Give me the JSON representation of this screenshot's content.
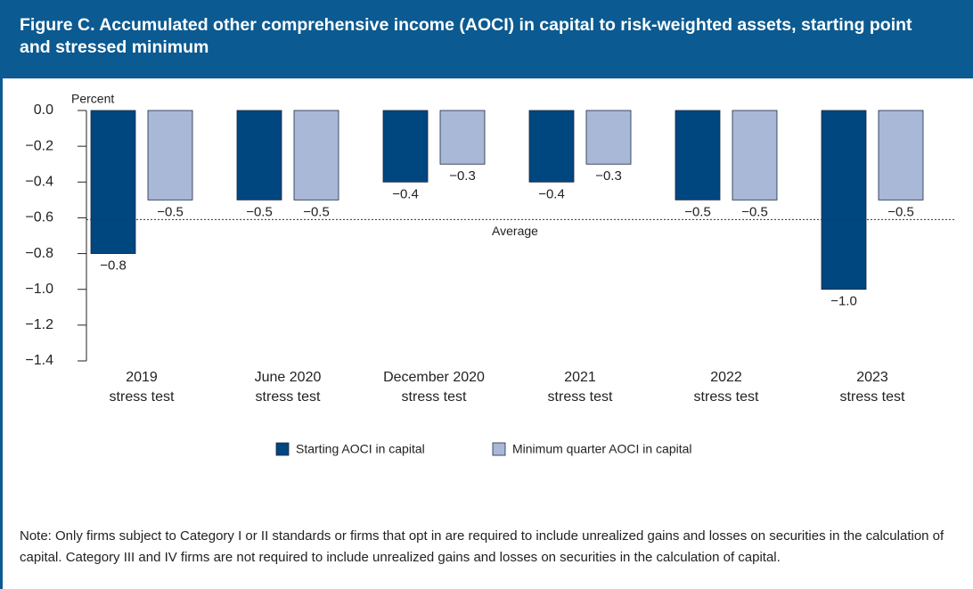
{
  "chart_data": {
    "type": "bar",
    "title": "Figure C. Accumulated other comprehensive income (AOCI) in capital to risk-weighted assets, starting point and stressed minimum",
    "y_axis_label": "Percent",
    "categories": [
      "2019\nstress test",
      "June 2020\nstress test",
      "December 2020\nstress test",
      "2021\nstress test",
      "2022\nstress test",
      "2023\nstress test"
    ],
    "series": [
      {
        "name": "Starting AOCI in capital",
        "color": "#00467f",
        "values": [
          -0.8,
          -0.5,
          -0.4,
          -0.4,
          -0.5,
          -1.0
        ],
        "value_labels": [
          "−0.8",
          "−0.5",
          "−0.4",
          "−0.4",
          "−0.5",
          "−1.0"
        ]
      },
      {
        "name": "Minimum quarter AOCI in capital",
        "color": "#a8b8d6",
        "values": [
          -0.5,
          -0.5,
          -0.3,
          -0.3,
          -0.5,
          -0.5
        ],
        "value_labels": [
          "−0.5",
          "−0.5",
          "−0.3",
          "−0.3",
          "−0.5",
          "−0.5"
        ]
      }
    ],
    "ylim": [
      -1.4,
      0
    ],
    "yticks": [
      {
        "value": 0,
        "label": "0.0"
      },
      {
        "value": -0.2,
        "label": "−0.2"
      },
      {
        "value": -0.4,
        "label": "−0.4"
      },
      {
        "value": -0.6,
        "label": "−0.6"
      },
      {
        "value": -0.8,
        "label": "−0.8"
      },
      {
        "value": -1.0,
        "label": "−1.0"
      },
      {
        "value": -1.2,
        "label": "−1.2"
      },
      {
        "value": -1.4,
        "label": "−1.4"
      }
    ],
    "reference_line": {
      "label": "Average",
      "value": -0.61
    },
    "legend": "bottom",
    "note": "Note: Only firms subject to Category I or II standards or firms that opt in are required to include unrealized gains and losses on securities in the calculation of capital. Category III and IV firms are not required to include unrealized gains and losses on securities in the calculation of capital."
  }
}
